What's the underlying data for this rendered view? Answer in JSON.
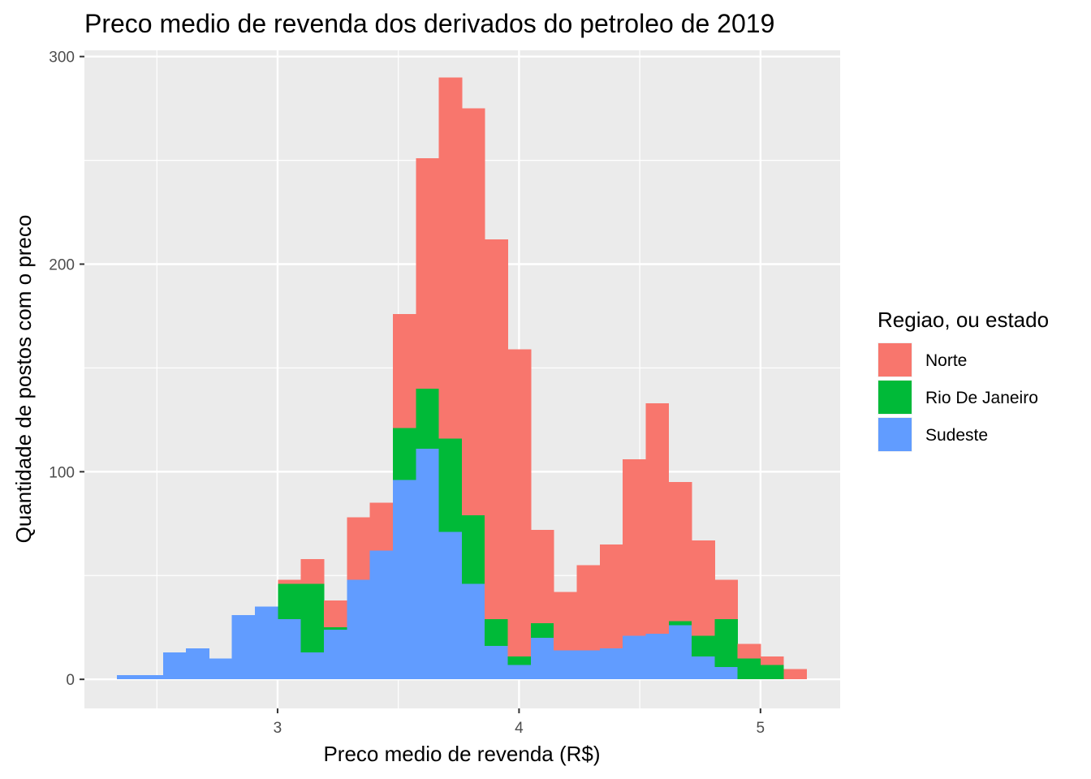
{
  "chart_data": {
    "type": "bar",
    "subtype": "stacked-histogram",
    "title": "Preco medio de revenda dos derivados do petroleo de 2019",
    "xlabel": "Preco medio de revenda (R$)",
    "ylabel": "Quantidade de postos com o preco",
    "xlim": [
      2.2,
      5.33
    ],
    "ylim": [
      -14,
      303
    ],
    "xticks": [
      3,
      4,
      5
    ],
    "xtick_labels": [
      "3",
      "4",
      "5"
    ],
    "yticks": [
      0,
      100,
      200,
      300
    ],
    "ytick_labels": [
      "0",
      "100",
      "200",
      "300"
    ],
    "grid": true,
    "legend": {
      "title": "Regiao, ou estado",
      "position": "right"
    },
    "bin_width": 0.0952,
    "bin_start": 2.335,
    "series": [
      {
        "name": "Sudeste",
        "color": "#619CFF",
        "values": [
          2,
          2,
          13,
          15,
          10,
          31,
          35,
          29,
          13,
          24,
          48,
          62,
          96,
          111,
          71,
          46,
          16,
          7,
          20,
          14,
          14,
          15,
          21,
          22,
          26,
          11,
          6,
          0,
          0,
          0
        ]
      },
      {
        "name": "Rio De Janeiro",
        "color": "#00BA38",
        "values": [
          0,
          0,
          0,
          0,
          0,
          0,
          0,
          17,
          33,
          1,
          0,
          0,
          25,
          29,
          45,
          33,
          13,
          4,
          7,
          0,
          0,
          0,
          0,
          0,
          2,
          10,
          23,
          10,
          7,
          0
        ]
      },
      {
        "name": "Norte",
        "color": "#F8766D",
        "values": [
          0,
          0,
          0,
          0,
          0,
          0,
          0,
          2,
          12,
          13,
          30,
          23,
          55,
          111,
          174,
          196,
          183,
          148,
          45,
          28,
          41,
          50,
          85,
          111,
          67,
          46,
          19,
          7,
          4,
          5
        ]
      }
    ]
  }
}
